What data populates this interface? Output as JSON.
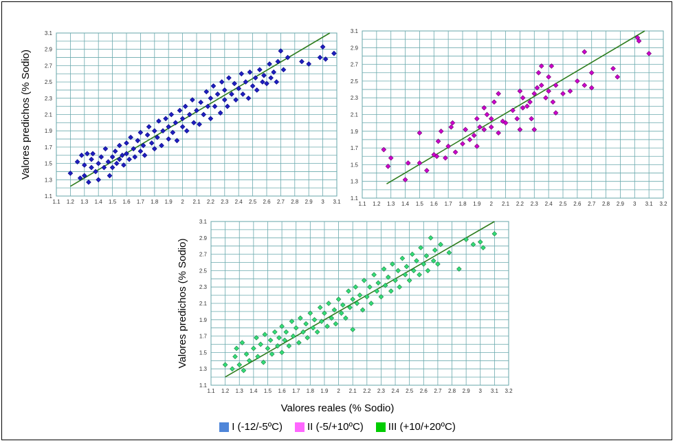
{
  "figure": {
    "xlabel": "Valores reales (% Sodio)",
    "ylabel": "Valores  predichos (% Sodio)"
  },
  "legend": [
    {
      "label": "I (-12/-5ºC)",
      "color": "#4f86d9"
    },
    {
      "label": "II (-5/+10ºC)",
      "color": "#ff66ff"
    },
    {
      "label": "III (+10/+20ºC)",
      "color": "#00cc00"
    }
  ],
  "chart_data": [
    {
      "type": "scatter",
      "name": "I (-12/-5ºC)",
      "marker_color": "#1f1fbf",
      "marker_stroke": "#000080",
      "ylabel": "Valores  predichos (% Sodio)",
      "xlim": [
        1.1,
        3.1
      ],
      "ylim": [
        1.1,
        3.1
      ],
      "xticks": [
        1.1,
        1.2,
        1.3,
        1.4,
        1.5,
        1.6,
        1.7,
        1.8,
        1.9,
        2,
        2.1,
        2.2,
        2.3,
        2.4,
        2.5,
        2.6,
        2.7,
        2.8,
        2.9,
        3,
        3.1
      ],
      "yticks": [
        1.1,
        1.3,
        1.5,
        1.7,
        1.9,
        2.1,
        2.3,
        2.5,
        2.7,
        2.9,
        3.1
      ],
      "fit_line": [
        [
          1.2,
          1.22
        ],
        [
          3.05,
          3.1
        ]
      ],
      "grid": true,
      "points": [
        [
          1.2,
          1.38
        ],
        [
          1.25,
          1.52
        ],
        [
          1.27,
          1.32
        ],
        [
          1.28,
          1.6
        ],
        [
          1.3,
          1.48
        ],
        [
          1.3,
          1.35
        ],
        [
          1.32,
          1.62
        ],
        [
          1.33,
          1.27
        ],
        [
          1.35,
          1.45
        ],
        [
          1.35,
          1.55
        ],
        [
          1.36,
          1.62
        ],
        [
          1.38,
          1.4
        ],
        [
          1.4,
          1.5
        ],
        [
          1.4,
          1.3
        ],
        [
          1.42,
          1.58
        ],
        [
          1.44,
          1.45
        ],
        [
          1.45,
          1.68
        ],
        [
          1.47,
          1.52
        ],
        [
          1.48,
          1.35
        ],
        [
          1.5,
          1.58
        ],
        [
          1.5,
          1.45
        ],
        [
          1.52,
          1.65
        ],
        [
          1.53,
          1.5
        ],
        [
          1.55,
          1.72
        ],
        [
          1.55,
          1.55
        ],
        [
          1.57,
          1.6
        ],
        [
          1.58,
          1.48
        ],
        [
          1.6,
          1.75
        ],
        [
          1.6,
          1.62
        ],
        [
          1.62,
          1.55
        ],
        [
          1.63,
          1.82
        ],
        [
          1.65,
          1.68
        ],
        [
          1.66,
          1.58
        ],
        [
          1.68,
          1.78
        ],
        [
          1.7,
          1.65
        ],
        [
          1.7,
          1.88
        ],
        [
          1.72,
          1.72
        ],
        [
          1.73,
          1.6
        ],
        [
          1.75,
          1.85
        ],
        [
          1.76,
          1.95
        ],
        [
          1.78,
          1.75
        ],
        [
          1.8,
          1.68
        ],
        [
          1.8,
          1.9
        ],
        [
          1.82,
          1.82
        ],
        [
          1.83,
          2.02
        ],
        [
          1.85,
          1.72
        ],
        [
          1.86,
          1.9
        ],
        [
          1.88,
          2.05
        ],
        [
          1.9,
          1.8
        ],
        [
          1.9,
          1.95
        ],
        [
          1.92,
          2.1
        ],
        [
          1.93,
          1.88
        ],
        [
          1.95,
          2.0
        ],
        [
          1.96,
          1.78
        ],
        [
          1.98,
          2.15
        ],
        [
          2.0,
          1.95
        ],
        [
          2.0,
          2.05
        ],
        [
          2.02,
          2.2
        ],
        [
          2.03,
          1.9
        ],
        [
          2.05,
          2.1
        ],
        [
          2.07,
          2.28
        ],
        [
          2.08,
          2.0
        ],
        [
          2.1,
          2.15
        ],
        [
          2.12,
          1.98
        ],
        [
          2.13,
          2.25
        ],
        [
          2.15,
          2.1
        ],
        [
          2.17,
          2.38
        ],
        [
          2.18,
          2.2
        ],
        [
          2.2,
          2.05
        ],
        [
          2.2,
          2.3
        ],
        [
          2.22,
          2.45
        ],
        [
          2.23,
          2.2
        ],
        [
          2.25,
          2.35
        ],
        [
          2.27,
          2.12
        ],
        [
          2.28,
          2.5
        ],
        [
          2.3,
          2.28
        ],
        [
          2.3,
          2.4
        ],
        [
          2.32,
          2.2
        ],
        [
          2.33,
          2.55
        ],
        [
          2.35,
          2.35
        ],
        [
          2.37,
          2.48
        ],
        [
          2.38,
          2.28
        ],
        [
          2.4,
          2.42
        ],
        [
          2.42,
          2.6
        ],
        [
          2.43,
          2.35
        ],
        [
          2.45,
          2.5
        ],
        [
          2.47,
          2.3
        ],
        [
          2.48,
          2.62
        ],
        [
          2.5,
          2.45
        ],
        [
          2.52,
          2.55
        ],
        [
          2.53,
          2.4
        ],
        [
          2.55,
          2.65
        ],
        [
          2.57,
          2.5
        ],
        [
          2.58,
          2.58
        ],
        [
          2.6,
          2.48
        ],
        [
          2.62,
          2.72
        ],
        [
          2.63,
          2.55
        ],
        [
          2.65,
          2.62
        ],
        [
          2.67,
          2.5
        ],
        [
          2.68,
          2.75
        ],
        [
          2.7,
          2.88
        ],
        [
          2.72,
          2.65
        ],
        [
          2.75,
          2.8
        ],
        [
          2.85,
          2.75
        ],
        [
          2.9,
          2.72
        ],
        [
          2.98,
          2.8
        ],
        [
          3.0,
          2.93
        ],
        [
          3.02,
          2.78
        ],
        [
          3.08,
          2.85
        ]
      ]
    },
    {
      "type": "scatter",
      "name": "II (-5/+10ºC)",
      "marker_color": "#cc00cc",
      "marker_stroke": "#660066",
      "xlim": [
        1.1,
        3.2
      ],
      "ylim": [
        1.1,
        3.1
      ],
      "xticks": [
        1.1,
        1.2,
        1.3,
        1.4,
        1.5,
        1.6,
        1.7,
        1.8,
        1.9,
        2,
        2.1,
        2.2,
        2.3,
        2.4,
        2.5,
        2.6,
        2.7,
        2.8,
        2.9,
        3,
        3.1,
        3.2
      ],
      "yticks": [
        1.1,
        1.3,
        1.5,
        1.7,
        1.9,
        2.1,
        2.3,
        2.5,
        2.7,
        2.9,
        3.1
      ],
      "fit_line": [
        [
          1.27,
          1.27
        ],
        [
          3.07,
          3.1
        ]
      ],
      "grid": true,
      "points": [
        [
          1.25,
          1.68
        ],
        [
          1.28,
          1.48
        ],
        [
          1.3,
          1.58
        ],
        [
          1.4,
          1.32
        ],
        [
          1.42,
          1.52
        ],
        [
          1.5,
          1.52
        ],
        [
          1.5,
          1.88
        ],
        [
          1.55,
          1.43
        ],
        [
          1.6,
          1.62
        ],
        [
          1.62,
          1.6
        ],
        [
          1.63,
          1.78
        ],
        [
          1.65,
          1.9
        ],
        [
          1.68,
          1.58
        ],
        [
          1.7,
          1.72
        ],
        [
          1.72,
          1.95
        ],
        [
          1.73,
          2.0
        ],
        [
          1.75,
          1.65
        ],
        [
          1.8,
          1.75
        ],
        [
          1.82,
          1.92
        ],
        [
          1.85,
          1.8
        ],
        [
          1.88,
          1.85
        ],
        [
          1.9,
          1.72
        ],
        [
          1.9,
          2.05
        ],
        [
          1.92,
          1.95
        ],
        [
          1.95,
          2.18
        ],
        [
          1.95,
          1.92
        ],
        [
          1.97,
          2.1
        ],
        [
          2.0,
          1.95
        ],
        [
          2.0,
          2.05
        ],
        [
          2.02,
          2.25
        ],
        [
          2.05,
          1.88
        ],
        [
          2.05,
          2.35
        ],
        [
          2.08,
          2.02
        ],
        [
          2.1,
          2.0
        ],
        [
          2.15,
          2.15
        ],
        [
          2.18,
          2.05
        ],
        [
          2.2,
          2.38
        ],
        [
          2.2,
          1.92
        ],
        [
          2.22,
          2.18
        ],
        [
          2.22,
          2.3
        ],
        [
          2.25,
          2.2
        ],
        [
          2.27,
          2.25
        ],
        [
          2.28,
          2.05
        ],
        [
          2.3,
          2.35
        ],
        [
          2.3,
          1.92
        ],
        [
          2.32,
          2.42
        ],
        [
          2.33,
          2.6
        ],
        [
          2.35,
          2.45
        ],
        [
          2.35,
          2.68
        ],
        [
          2.38,
          2.3
        ],
        [
          2.4,
          2.38
        ],
        [
          2.4,
          2.55
        ],
        [
          2.42,
          2.68
        ],
        [
          2.43,
          2.25
        ],
        [
          2.45,
          2.12
        ],
        [
          2.45,
          2.45
        ],
        [
          2.5,
          2.35
        ],
        [
          2.55,
          2.38
        ],
        [
          2.6,
          2.5
        ],
        [
          2.65,
          2.85
        ],
        [
          2.65,
          2.45
        ],
        [
          2.7,
          2.6
        ],
        [
          2.7,
          2.42
        ],
        [
          2.85,
          2.65
        ],
        [
          2.88,
          2.55
        ],
        [
          3.02,
          3.02
        ],
        [
          3.03,
          2.98
        ],
        [
          3.1,
          2.83
        ]
      ]
    },
    {
      "type": "scatter",
      "name": "III (+10/+20ºC)",
      "marker_color": "#33dd77",
      "marker_stroke": "#1a7a40",
      "ylabel": "Valores  predichos (% Sodio)",
      "xlabel": "Valores reales (% Sodio)",
      "xlim": [
        1.1,
        3.2
      ],
      "ylim": [
        1.1,
        3.1
      ],
      "xticks": [
        1.1,
        1.2,
        1.3,
        1.4,
        1.5,
        1.6,
        1.7,
        1.8,
        1.9,
        2,
        2.1,
        2.2,
        2.3,
        2.4,
        2.5,
        2.6,
        2.7,
        2.8,
        2.9,
        3,
        3.1,
        3.2
      ],
      "yticks": [
        1.1,
        1.3,
        1.5,
        1.7,
        1.9,
        2.1,
        2.3,
        2.5,
        2.7,
        2.9,
        3.1
      ],
      "fit_line": [
        [
          1.2,
          1.2
        ],
        [
          3.1,
          3.1
        ]
      ],
      "grid": true,
      "points": [
        [
          1.2,
          1.35
        ],
        [
          1.25,
          1.3
        ],
        [
          1.27,
          1.45
        ],
        [
          1.28,
          1.55
        ],
        [
          1.3,
          1.35
        ],
        [
          1.32,
          1.62
        ],
        [
          1.33,
          1.28
        ],
        [
          1.35,
          1.48
        ],
        [
          1.37,
          1.4
        ],
        [
          1.4,
          1.55
        ],
        [
          1.42,
          1.68
        ],
        [
          1.43,
          1.45
        ],
        [
          1.45,
          1.6
        ],
        [
          1.47,
          1.38
        ],
        [
          1.48,
          1.72
        ],
        [
          1.5,
          1.55
        ],
        [
          1.52,
          1.65
        ],
        [
          1.53,
          1.48
        ],
        [
          1.55,
          1.75
        ],
        [
          1.57,
          1.58
        ],
        [
          1.58,
          1.68
        ],
        [
          1.6,
          1.5
        ],
        [
          1.6,
          1.82
        ],
        [
          1.62,
          1.65
        ],
        [
          1.63,
          1.75
        ],
        [
          1.65,
          1.58
        ],
        [
          1.67,
          1.88
        ],
        [
          1.68,
          1.7
        ],
        [
          1.7,
          1.8
        ],
        [
          1.72,
          1.62
        ],
        [
          1.73,
          1.92
        ],
        [
          1.75,
          1.75
        ],
        [
          1.77,
          1.85
        ],
        [
          1.78,
          1.68
        ],
        [
          1.8,
          1.98
        ],
        [
          1.82,
          1.8
        ],
        [
          1.83,
          1.9
        ],
        [
          1.85,
          1.75
        ],
        [
          1.87,
          2.05
        ],
        [
          1.88,
          1.88
        ],
        [
          1.9,
          1.98
        ],
        [
          1.92,
          1.82
        ],
        [
          1.93,
          2.1
        ],
        [
          1.95,
          1.92
        ],
        [
          1.97,
          2.02
        ],
        [
          1.98,
          1.85
        ],
        [
          2.0,
          2.15
        ],
        [
          2.02,
          1.98
        ],
        [
          2.03,
          2.08
        ],
        [
          2.05,
          1.92
        ],
        [
          2.07,
          2.25
        ],
        [
          2.08,
          2.05
        ],
        [
          2.1,
          2.15
        ],
        [
          2.1,
          1.78
        ],
        [
          2.12,
          2.3
        ],
        [
          2.13,
          2.1
        ],
        [
          2.15,
          2.2
        ],
        [
          2.17,
          2.02
        ],
        [
          2.18,
          2.38
        ],
        [
          2.2,
          2.18
        ],
        [
          2.22,
          2.3
        ],
        [
          2.23,
          2.1
        ],
        [
          2.25,
          2.45
        ],
        [
          2.27,
          2.25
        ],
        [
          2.28,
          2.35
        ],
        [
          2.3,
          2.18
        ],
        [
          2.32,
          2.52
        ],
        [
          2.33,
          2.32
        ],
        [
          2.35,
          2.42
        ],
        [
          2.37,
          2.25
        ],
        [
          2.38,
          2.58
        ],
        [
          2.4,
          2.38
        ],
        [
          2.42,
          2.5
        ],
        [
          2.43,
          2.3
        ],
        [
          2.45,
          2.65
        ],
        [
          2.47,
          2.45
        ],
        [
          2.48,
          2.55
        ],
        [
          2.5,
          2.38
        ],
        [
          2.52,
          2.7
        ],
        [
          2.53,
          2.5
        ],
        [
          2.55,
          2.62
        ],
        [
          2.57,
          2.45
        ],
        [
          2.58,
          2.78
        ],
        [
          2.6,
          2.58
        ],
        [
          2.62,
          2.68
        ],
        [
          2.63,
          2.5
        ],
        [
          2.65,
          2.9
        ],
        [
          2.67,
          2.62
        ],
        [
          2.68,
          2.75
        ],
        [
          2.7,
          2.58
        ],
        [
          2.72,
          2.82
        ],
        [
          2.78,
          2.72
        ],
        [
          2.85,
          2.52
        ],
        [
          2.9,
          2.88
        ],
        [
          2.95,
          2.82
        ],
        [
          3.0,
          2.85
        ],
        [
          3.02,
          2.78
        ],
        [
          3.1,
          2.95
        ]
      ]
    }
  ]
}
